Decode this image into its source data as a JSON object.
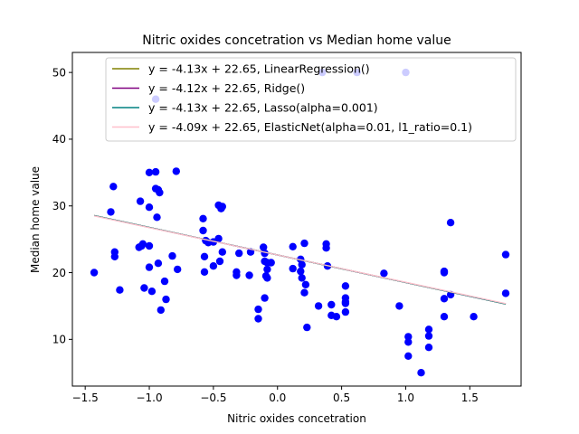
{
  "chart_data": {
    "type": "scatter",
    "title": "Nitric oxides concetration vs Median home value",
    "xlabel": "Nitric oxides concetration",
    "ylabel": "Median home value",
    "xlim": [
      -1.6,
      1.9
    ],
    "ylim": [
      3,
      53
    ],
    "xticks": [
      -1.5,
      -1.0,
      -0.5,
      0.0,
      0.5,
      1.0,
      1.5
    ],
    "xtick_labels": [
      "−1.5",
      "−1.0",
      "−0.5",
      "0.0",
      "0.5",
      "1.0",
      "1.5"
    ],
    "yticks": [
      10,
      20,
      30,
      40,
      50
    ],
    "ytick_labels": [
      "10",
      "20",
      "30",
      "40",
      "50"
    ],
    "grid": false,
    "legend_position": "top-right",
    "scatter": {
      "color": "#0000ff",
      "points": [
        [
          -1.43,
          20.0
        ],
        [
          -1.3,
          29.1
        ],
        [
          -1.28,
          32.9
        ],
        [
          -1.27,
          23.1
        ],
        [
          -1.27,
          22.4
        ],
        [
          -1.23,
          17.4
        ],
        [
          -1.08,
          23.8
        ],
        [
          -1.07,
          30.7
        ],
        [
          -1.06,
          24.0
        ],
        [
          -1.05,
          24.3
        ],
        [
          -1.04,
          17.7
        ],
        [
          -1.0,
          35.0
        ],
        [
          -1.0,
          29.8
        ],
        [
          -1.0,
          24.0
        ],
        [
          -1.0,
          20.8
        ],
        [
          -0.98,
          17.2
        ],
        [
          -0.95,
          35.1
        ],
        [
          -0.95,
          32.6
        ],
        [
          -0.94,
          28.3
        ],
        [
          -0.93,
          32.4
        ],
        [
          -0.92,
          32.0
        ],
        [
          -0.93,
          21.4
        ],
        [
          -0.91,
          14.4
        ],
        [
          -0.88,
          18.7
        ],
        [
          -0.87,
          16.0
        ],
        [
          -0.82,
          22.5
        ],
        [
          -0.79,
          35.2
        ],
        [
          -0.78,
          20.5
        ],
        [
          -0.95,
          46.0
        ],
        [
          -0.58,
          28.1
        ],
        [
          -0.58,
          26.3
        ],
        [
          -0.57,
          22.4
        ],
        [
          -0.57,
          20.1
        ],
        [
          -0.56,
          24.8
        ],
        [
          -0.54,
          24.5
        ],
        [
          -0.5,
          24.6
        ],
        [
          -0.5,
          21.0
        ],
        [
          -0.46,
          30.1
        ],
        [
          -0.44,
          29.6
        ],
        [
          -0.43,
          29.9
        ],
        [
          -0.46,
          25.1
        ],
        [
          -0.45,
          21.7
        ],
        [
          -0.43,
          23.1
        ],
        [
          -0.32,
          19.6
        ],
        [
          -0.32,
          20.1
        ],
        [
          -0.3,
          22.9
        ],
        [
          -0.22,
          19.6
        ],
        [
          -0.21,
          23.1
        ],
        [
          -0.15,
          14.5
        ],
        [
          -0.15,
          13.1
        ],
        [
          -0.11,
          23.8
        ],
        [
          -0.1,
          22.9
        ],
        [
          -0.1,
          21.7
        ],
        [
          -0.09,
          19.5
        ],
        [
          -0.08,
          21.5
        ],
        [
          -0.08,
          20.5
        ],
        [
          -0.08,
          19.2
        ],
        [
          -0.1,
          16.2
        ],
        [
          -0.05,
          21.5
        ],
        [
          0.12,
          23.9
        ],
        [
          0.12,
          20.6
        ],
        [
          0.18,
          22.0
        ],
        [
          0.19,
          21.2
        ],
        [
          0.18,
          20.2
        ],
        [
          0.19,
          19.2
        ],
        [
          0.21,
          24.4
        ],
        [
          0.21,
          17.0
        ],
        [
          0.22,
          18.2
        ],
        [
          0.23,
          11.8
        ],
        [
          0.32,
          15.0
        ],
        [
          0.38,
          24.3
        ],
        [
          0.38,
          23.7
        ],
        [
          0.39,
          21.0
        ],
        [
          0.42,
          15.2
        ],
        [
          0.42,
          13.6
        ],
        [
          0.46,
          13.4
        ],
        [
          0.53,
          18.0
        ],
        [
          0.53,
          16.2
        ],
        [
          0.53,
          15.6
        ],
        [
          0.53,
          15.4
        ],
        [
          0.53,
          14.1
        ],
        [
          0.83,
          19.9
        ],
        [
          0.95,
          15.0
        ],
        [
          1.02,
          10.4
        ],
        [
          1.02,
          9.6
        ],
        [
          1.02,
          7.5
        ],
        [
          1.12,
          5.0
        ],
        [
          1.18,
          11.5
        ],
        [
          1.18,
          10.5
        ],
        [
          1.18,
          8.8
        ],
        [
          1.3,
          20.2
        ],
        [
          1.3,
          20.0
        ],
        [
          1.3,
          16.1
        ],
        [
          1.3,
          13.4
        ],
        [
          1.35,
          27.5
        ],
        [
          1.35,
          16.7
        ],
        [
          1.53,
          13.4
        ],
        [
          1.78,
          22.7
        ],
        [
          1.78,
          16.9
        ],
        [
          0.35,
          50.0
        ],
        [
          0.62,
          50.0
        ],
        [
          1.0,
          50.0
        ]
      ]
    },
    "line_x_range": [
      -1.43,
      1.78
    ],
    "series": [
      {
        "name": "y = -4.13x + 22.65, LinearRegression()",
        "slope": -4.13,
        "intercept": 22.65,
        "color": "#808000"
      },
      {
        "name": "y = -4.12x + 22.65, Ridge()",
        "slope": -4.12,
        "intercept": 22.65,
        "color": "#800080"
      },
      {
        "name": "y = -4.13x + 22.65, Lasso(alpha=0.001)",
        "slope": -4.13,
        "intercept": 22.65,
        "color": "#008080"
      },
      {
        "name": "y = -4.09x + 22.65, ElasticNet(alpha=0.01, l1_ratio=0.1)",
        "slope": -4.09,
        "intercept": 22.65,
        "color": "#ffc0cb"
      }
    ]
  }
}
